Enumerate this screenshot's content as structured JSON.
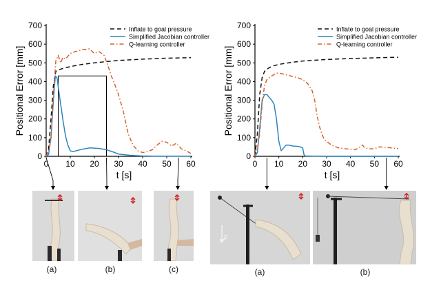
{
  "chart_data": [
    {
      "type": "line",
      "ylabel": "Positional Error [mm]",
      "xlabel": "t [s]",
      "xlim": [
        0,
        60
      ],
      "ylim": [
        0,
        700
      ],
      "xticks": [
        "0",
        "10",
        "20",
        "30",
        "40",
        "50",
        "60"
      ],
      "yticks": [
        "0",
        "100",
        "200",
        "300",
        "400",
        "500",
        "600",
        "700"
      ],
      "grid": false,
      "legend": "top-right",
      "series": [
        {
          "name": "Inflate to goal pressure",
          "color": "#111111",
          "style": "dashed",
          "x": [
            0,
            1,
            2,
            3,
            4,
            5,
            7,
            10,
            15,
            20,
            25,
            30,
            40,
            50,
            60
          ],
          "y": [
            0,
            40,
            200,
            380,
            455,
            462,
            470,
            480,
            492,
            500,
            507,
            513,
            520,
            525,
            528
          ]
        },
        {
          "name": "Simplified Jacobian controller",
          "color": "#2b86c0",
          "style": "solid",
          "x": [
            0,
            1,
            2,
            3,
            3.8,
            4.5,
            5,
            6,
            7,
            8,
            9,
            10,
            11,
            12,
            15,
            18,
            20,
            22,
            25,
            28,
            30,
            35,
            40,
            45,
            50,
            55,
            60
          ],
          "y": [
            0,
            10,
            100,
            300,
            430,
            420,
            370,
            280,
            190,
            110,
            60,
            30,
            25,
            28,
            38,
            45,
            44,
            42,
            35,
            22,
            12,
            5,
            2,
            1,
            1,
            1,
            1
          ]
        },
        {
          "name": "Q-learning controller",
          "color": "#d9602a",
          "style": "dashdot",
          "x": [
            0,
            1,
            2,
            3,
            4,
            5,
            6,
            7,
            8,
            10,
            12,
            15,
            18,
            20,
            22,
            24,
            26,
            27,
            28,
            30,
            32,
            34,
            36,
            38,
            40,
            42,
            44,
            46,
            48,
            50,
            52,
            54,
            56,
            58,
            60
          ],
          "y": [
            0,
            30,
            90,
            320,
            510,
            540,
            500,
            530,
            520,
            550,
            560,
            570,
            575,
            550,
            560,
            540,
            470,
            430,
            400,
            330,
            240,
            120,
            60,
            30,
            20,
            25,
            35,
            60,
            80,
            75,
            55,
            70,
            40,
            30,
            15
          ]
        }
      ],
      "annotations": {
        "zoom_box": [
          5,
          25,
          0,
          430
        ],
        "markers_s": [
          0,
          25,
          55
        ]
      }
    },
    {
      "type": "line",
      "ylabel": "Positional Error [mm]",
      "xlabel": "t [s]",
      "xlim": [
        0,
        60
      ],
      "ylim": [
        0,
        700
      ],
      "xticks": [
        "0",
        "10",
        "20",
        "30",
        "40",
        "50",
        "60"
      ],
      "yticks": [
        "0",
        "100",
        "200",
        "300",
        "400",
        "500",
        "600",
        "700"
      ],
      "grid": false,
      "legend": "top-right",
      "series": [
        {
          "name": "Inflate to goal pressure",
          "color": "#111111",
          "style": "dashed",
          "x": [
            0,
            1,
            2,
            3,
            4,
            6,
            8,
            10,
            15,
            20,
            30,
            40,
            50,
            60
          ],
          "y": [
            0,
            120,
            330,
            420,
            455,
            475,
            485,
            492,
            502,
            510,
            518,
            523,
            527,
            530
          ]
        },
        {
          "name": "Simplified Jacobian controller",
          "color": "#2b86c0",
          "style": "solid",
          "x": [
            0,
            1,
            2,
            3,
            4,
            5,
            6,
            7,
            8,
            9,
            10,
            11,
            12,
            13,
            14,
            16,
            18,
            19,
            20,
            20.5,
            21,
            25,
            30,
            40,
            50,
            60
          ],
          "y": [
            0,
            20,
            150,
            300,
            330,
            330,
            315,
            300,
            280,
            200,
            80,
            30,
            45,
            60,
            60,
            55,
            53,
            50,
            45,
            10,
            2,
            1,
            0,
            0,
            0,
            0
          ]
        },
        {
          "name": "Q-learning controller",
          "color": "#d9602a",
          "style": "dashdot",
          "x": [
            0,
            1,
            2,
            3,
            4,
            5,
            7,
            9,
            10,
            12,
            15,
            18,
            20,
            22,
            24,
            25,
            26,
            27,
            28,
            29,
            30,
            32,
            35,
            38,
            40,
            42,
            44,
            45,
            46,
            48,
            50,
            52,
            55,
            57,
            60
          ],
          "y": [
            0,
            40,
            120,
            280,
            380,
            410,
            430,
            445,
            445,
            440,
            430,
            420,
            410,
            390,
            350,
            300,
            220,
            160,
            120,
            90,
            80,
            60,
            45,
            40,
            38,
            35,
            50,
            60,
            45,
            40,
            40,
            50,
            48,
            45,
            42
          ]
        }
      ],
      "annotations": {
        "markers_s": [
          5,
          55
        ]
      }
    }
  ],
  "captions": [
    "(a)",
    "(b)",
    "(c)",
    "(a)",
    "(b)"
  ],
  "force_label": "F"
}
